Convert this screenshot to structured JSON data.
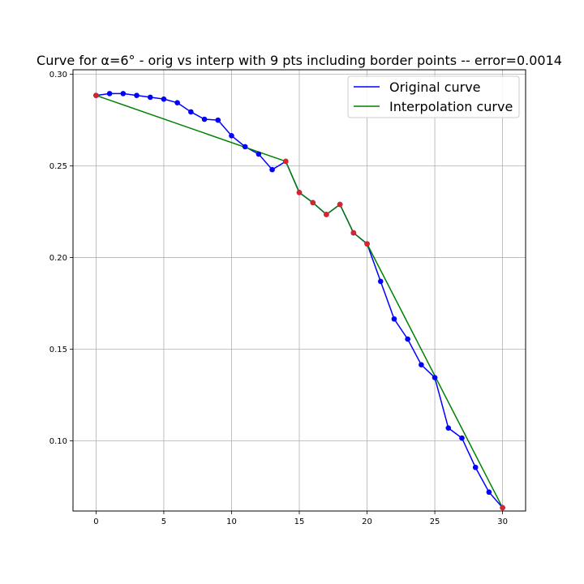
{
  "chart_data": {
    "type": "line",
    "title": "Curve for α=6° - orig vs interp with 9 pts including border points -- error=0.0014",
    "xlabel": "",
    "ylabel": "",
    "xlim": [
      -1.7,
      31.7
    ],
    "ylim": [
      0.0617,
      0.3025
    ],
    "xticks": [
      0,
      5,
      10,
      15,
      20,
      25,
      30
    ],
    "yticks": [
      0.1,
      0.15,
      0.2,
      0.25,
      0.3
    ],
    "ytick_labels": [
      "0.10",
      "0.15",
      "0.20",
      "0.25",
      "0.30"
    ],
    "grid": true,
    "legend_position": "top-right",
    "colors": {
      "original": "#0000ff",
      "interpolation": "#008000",
      "interp_points": "#d62728"
    },
    "series": [
      {
        "name": "Original curve",
        "color": "#0000ff",
        "marker": "circle",
        "x": [
          0,
          1,
          2,
          3,
          4,
          5,
          6,
          7,
          8,
          9,
          10,
          11,
          12,
          13,
          14,
          15,
          16,
          17,
          18,
          19,
          20,
          21,
          22,
          23,
          24,
          25,
          26,
          27,
          28,
          29,
          30
        ],
        "y": [
          0.2885,
          0.2895,
          0.2895,
          0.2885,
          0.2875,
          0.2865,
          0.2845,
          0.2795,
          0.2755,
          0.275,
          0.2665,
          0.2605,
          0.2565,
          0.248,
          0.2525,
          0.2355,
          0.23,
          0.2235,
          0.229,
          0.2135,
          0.2075,
          0.187,
          0.1665,
          0.1555,
          0.1415,
          0.1345,
          0.107,
          0.1015,
          0.0855,
          0.072,
          0.0635
        ]
      },
      {
        "name": "Interpolation curve",
        "color": "#008000",
        "marker": "circle",
        "x": [
          0,
          14,
          15,
          16,
          17,
          18,
          19,
          20,
          30
        ],
        "y": [
          0.2885,
          0.2525,
          0.2355,
          0.23,
          0.2235,
          0.229,
          0.2135,
          0.2075,
          0.0635
        ]
      }
    ]
  }
}
